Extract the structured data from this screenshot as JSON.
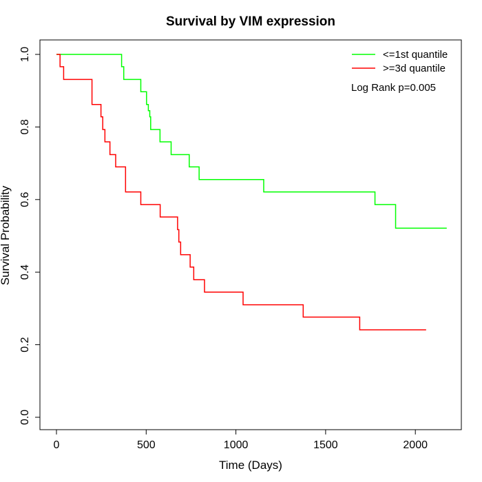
{
  "chart_data": {
    "type": "line",
    "title": "Survival by VIM expression",
    "xlabel": "Time (Days)",
    "ylabel": "Survival Probability",
    "xlim": [
      0,
      2200
    ],
    "ylim": [
      0,
      1
    ],
    "x_ticks": [
      0,
      500,
      1000,
      1500,
      2000
    ],
    "y_ticks": [
      0.0,
      0.2,
      0.4,
      0.6,
      0.8,
      1.0
    ],
    "x_tick_labels": [
      "0",
      "500",
      "1000",
      "1500",
      "2000"
    ],
    "y_tick_labels": [
      "0.0",
      "0.2",
      "0.4",
      "0.6",
      "0.8",
      "1.0"
    ],
    "grid": false,
    "legend_position": "top-right",
    "annotation": "Log Rank p=0.005",
    "series": [
      {
        "name": "<=1st quantile",
        "color": "#00ff00",
        "step": true,
        "x": [
          0,
          363,
          375,
          470,
          502,
          512,
          520,
          525,
          577,
          639,
          740,
          795,
          1155,
          1775,
          1890,
          2175
        ],
        "y": [
          1.0,
          0.966,
          0.931,
          0.897,
          0.862,
          0.845,
          0.828,
          0.793,
          0.759,
          0.724,
          0.69,
          0.655,
          0.621,
          0.586,
          0.521,
          0.521
        ]
      },
      {
        "name": ">=3d quantile",
        "color": "#ff0000",
        "step": true,
        "x": [
          0,
          20,
          40,
          198,
          248,
          258,
          270,
          298,
          330,
          385,
          470,
          578,
          675,
          682,
          692,
          745,
          765,
          825,
          1040,
          1375,
          1690,
          2060
        ],
        "y": [
          1.0,
          0.966,
          0.931,
          0.862,
          0.828,
          0.793,
          0.759,
          0.724,
          0.69,
          0.621,
          0.586,
          0.552,
          0.517,
          0.483,
          0.448,
          0.414,
          0.379,
          0.345,
          0.31,
          0.276,
          0.241,
          0.241
        ]
      }
    ]
  }
}
